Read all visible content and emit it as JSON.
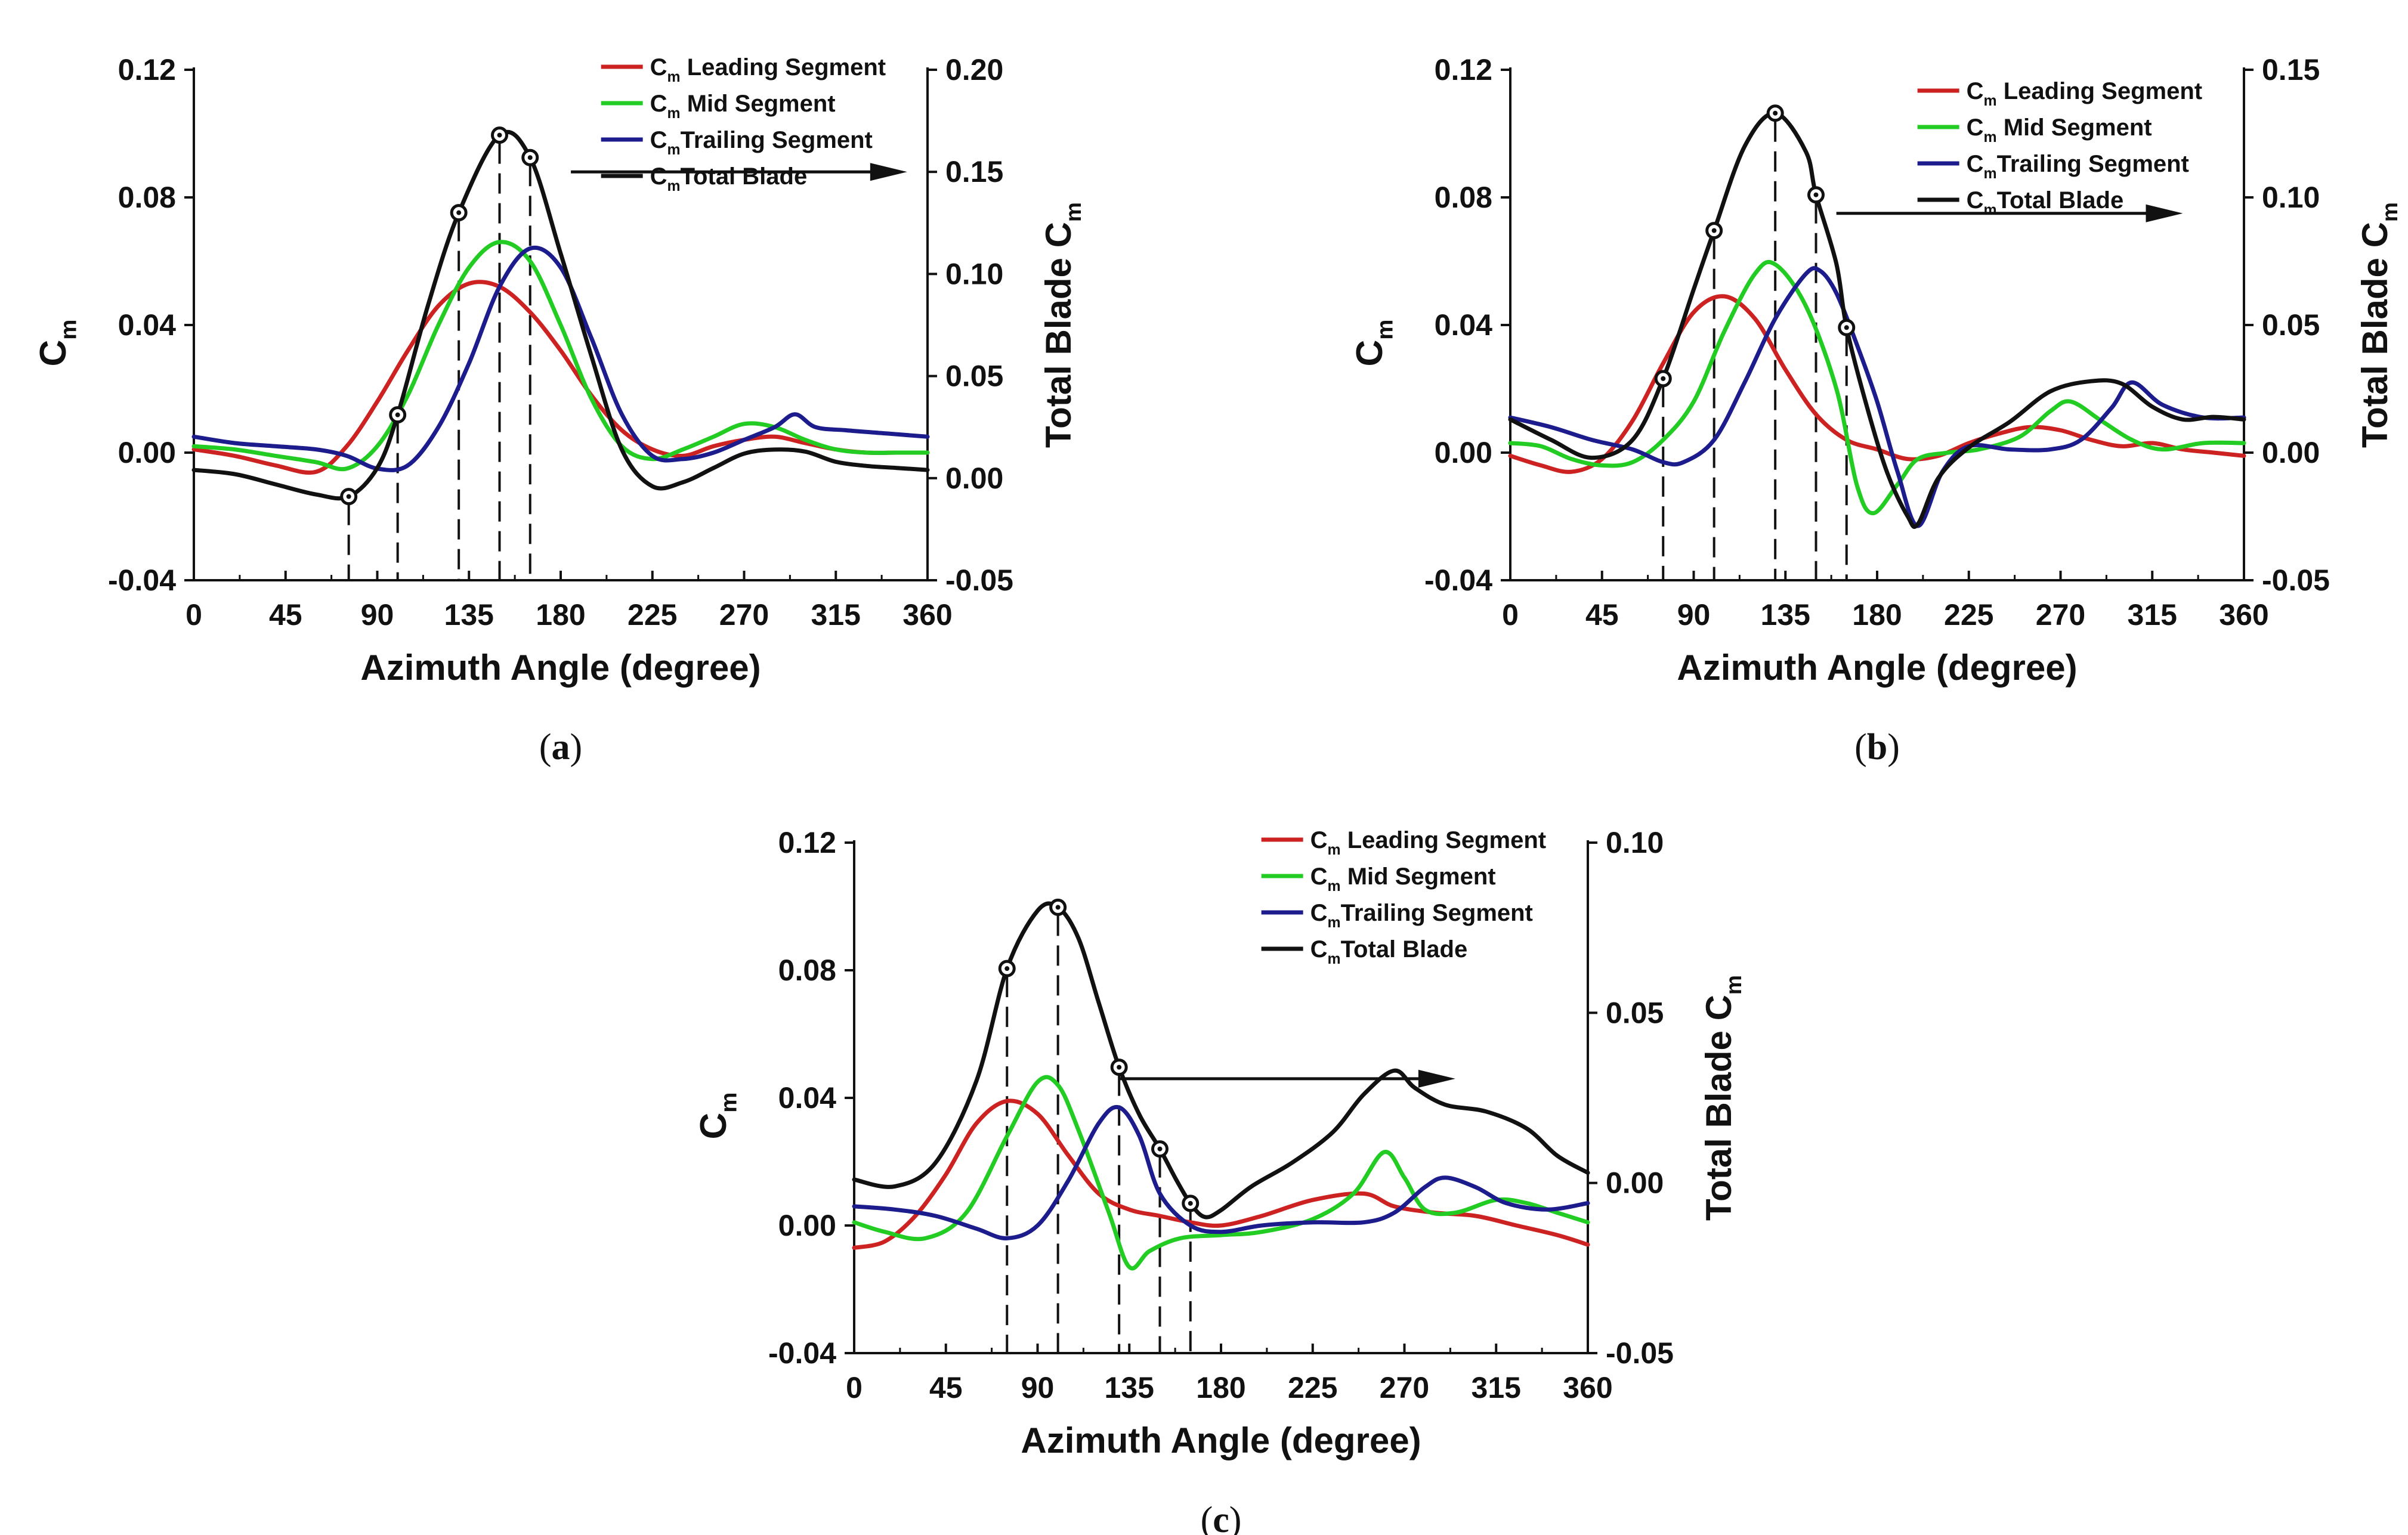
{
  "colors": {
    "leading": "#cc2222",
    "mid": "#22cc22",
    "trailing": "#1c1c8c",
    "total": "#111111",
    "axis": "#111111"
  },
  "chart_data": [
    {
      "id": "a",
      "type": "line",
      "caption": "a",
      "xlabel": "Azimuth Angle (degree)",
      "ylabel": "C",
      "ylabel_sub": "m",
      "y2label": "Total Blade C",
      "y2label_sub": "m",
      "xlim": [
        0,
        360
      ],
      "ylim": [
        -0.04,
        0.12
      ],
      "y2lim": [
        -0.05,
        0.2
      ],
      "xticks": [
        "0",
        "45",
        "90",
        "135",
        "180",
        "225",
        "270",
        "315",
        "360"
      ],
      "yticks": [
        "-0.04",
        "0.00",
        "0.04",
        "0.08",
        "0.12"
      ],
      "y2ticks": [
        "-0.05",
        "0.00",
        "0.05",
        "0.10",
        "0.15",
        "0.20"
      ],
      "legend": [
        {
          "prefix": "C",
          "sub": "m",
          "label": " Leading Segment",
          "series": "leading"
        },
        {
          "prefix": "C",
          "sub": "m",
          "label": " Mid Segment",
          "series": "mid"
        },
        {
          "prefix": "C",
          "sub": "m",
          "label": "Trailing Segment",
          "series": "trailing"
        },
        {
          "prefix": "C",
          "sub": "m",
          "label": "Total Blade",
          "series": "total"
        }
      ],
      "legend_position": "top-right",
      "series": [
        {
          "key": "leading",
          "name": "Cm Leading Segment",
          "axis": "left",
          "x": [
            0,
            20,
            40,
            60,
            75,
            90,
            105,
            120,
            135,
            150,
            165,
            180,
            195,
            210,
            225,
            240,
            255,
            270,
            285,
            300,
            315,
            330,
            345,
            360
          ],
          "y": [
            0.001,
            -0.001,
            -0.004,
            -0.006,
            0.002,
            0.016,
            0.032,
            0.046,
            0.053,
            0.052,
            0.044,
            0.032,
            0.018,
            0.007,
            0.001,
            -0.001,
            0.002,
            0.004,
            0.005,
            0.003,
            0.001,
            0.0,
            0.0,
            0.0
          ]
        },
        {
          "key": "mid",
          "name": "Cm Mid Segment",
          "axis": "left",
          "x": [
            0,
            20,
            40,
            60,
            75,
            90,
            105,
            120,
            135,
            150,
            165,
            180,
            195,
            210,
            225,
            240,
            255,
            270,
            285,
            300,
            315,
            330,
            345,
            360
          ],
          "y": [
            0.002,
            0.001,
            -0.001,
            -0.003,
            -0.005,
            0.002,
            0.018,
            0.04,
            0.058,
            0.066,
            0.06,
            0.04,
            0.017,
            0.002,
            -0.002,
            0.001,
            0.005,
            0.009,
            0.008,
            0.004,
            0.001,
            0.0,
            0.0,
            0.0
          ]
        },
        {
          "key": "trailing",
          "name": "Cm Trailing Segment",
          "axis": "left",
          "x": [
            0,
            20,
            40,
            60,
            75,
            90,
            105,
            120,
            135,
            150,
            165,
            180,
            195,
            210,
            225,
            240,
            255,
            270,
            285,
            295,
            305,
            320,
            340,
            360
          ],
          "y": [
            0.005,
            0.003,
            0.002,
            0.001,
            -0.001,
            -0.005,
            -0.004,
            0.008,
            0.028,
            0.052,
            0.064,
            0.058,
            0.036,
            0.012,
            -0.001,
            -0.002,
            0.0,
            0.004,
            0.008,
            0.012,
            0.008,
            0.007,
            0.006,
            0.005
          ]
        },
        {
          "key": "total",
          "name": "Cm Total Blade",
          "axis": "right",
          "x": [
            0,
            20,
            40,
            60,
            76,
            90,
            100,
            115,
            130,
            150,
            165,
            180,
            195,
            210,
            225,
            240,
            255,
            270,
            285,
            300,
            315,
            330,
            345,
            360
          ],
          "y": [
            0.004,
            0.002,
            -0.003,
            -0.008,
            -0.009,
            0.005,
            0.031,
            0.085,
            0.13,
            0.168,
            0.157,
            0.11,
            0.06,
            0.014,
            -0.004,
            -0.002,
            0.005,
            0.012,
            0.014,
            0.013,
            0.008,
            0.006,
            0.005,
            0.004
          ]
        }
      ],
      "markers": [
        {
          "x": 76,
          "y": -0.009
        },
        {
          "x": 100,
          "y": 0.031
        },
        {
          "x": 130,
          "y": 0.13
        },
        {
          "x": 150,
          "y": 0.168
        },
        {
          "x": 165,
          "y": 0.157
        }
      ],
      "arrow": {
        "from_x": 185,
        "to_x": 350,
        "y": 0.088
      }
    },
    {
      "id": "b",
      "type": "line",
      "caption": "b",
      "xlabel": "Azimuth Angle (degree)",
      "ylabel": "C",
      "ylabel_sub": "m",
      "y2label": "Total Blade C",
      "y2label_sub": "m",
      "xlim": [
        0,
        360
      ],
      "ylim": [
        -0.04,
        0.12
      ],
      "y2lim": [
        -0.05,
        0.15
      ],
      "xticks": [
        "0",
        "45",
        "90",
        "135",
        "180",
        "225",
        "270",
        "315",
        "360"
      ],
      "yticks": [
        "-0.04",
        "0.00",
        "0.04",
        "0.08",
        "0.12"
      ],
      "y2ticks": [
        "-0.05",
        "0.00",
        "0.05",
        "0.10",
        "0.15"
      ],
      "legend": [
        {
          "prefix": "C",
          "sub": "m",
          "label": " Leading Segment",
          "series": "leading"
        },
        {
          "prefix": "C",
          "sub": "m",
          "label": " Mid Segment",
          "series": "mid"
        },
        {
          "prefix": "C",
          "sub": "m",
          "label": "Trailing Segment",
          "series": "trailing"
        },
        {
          "prefix": "C",
          "sub": "m",
          "label": "Total Blade",
          "series": "total"
        }
      ],
      "legend_position": "top-right",
      "series": [
        {
          "key": "leading",
          "name": "Cm Leading Segment",
          "axis": "left",
          "x": [
            0,
            15,
            30,
            45,
            60,
            75,
            90,
            105,
            120,
            135,
            150,
            165,
            180,
            195,
            210,
            225,
            240,
            255,
            270,
            285,
            300,
            315,
            330,
            345,
            360
          ],
          "y": [
            -0.001,
            -0.004,
            -0.006,
            -0.002,
            0.01,
            0.028,
            0.044,
            0.049,
            0.042,
            0.026,
            0.012,
            0.004,
            0.001,
            -0.002,
            -0.001,
            0.003,
            0.006,
            0.008,
            0.007,
            0.004,
            0.002,
            0.003,
            0.001,
            0.0,
            -0.001
          ]
        },
        {
          "key": "mid",
          "name": "Cm Mid Segment",
          "axis": "left",
          "x": [
            0,
            15,
            30,
            45,
            60,
            75,
            90,
            105,
            120,
            130,
            145,
            160,
            170,
            178,
            190,
            200,
            215,
            230,
            250,
            265,
            275,
            290,
            305,
            320,
            340,
            360
          ],
          "y": [
            0.003,
            0.002,
            -0.002,
            -0.004,
            -0.003,
            0.004,
            0.016,
            0.038,
            0.056,
            0.059,
            0.046,
            0.02,
            -0.01,
            -0.019,
            -0.01,
            -0.002,
            0.0,
            0.001,
            0.005,
            0.013,
            0.016,
            0.01,
            0.004,
            0.001,
            0.003,
            0.003
          ]
        },
        {
          "key": "trailing",
          "name": "Cm Trailing Segment",
          "axis": "left",
          "x": [
            0,
            20,
            40,
            60,
            75,
            85,
            100,
            115,
            130,
            145,
            152,
            160,
            170,
            180,
            190,
            200,
            212,
            225,
            245,
            265,
            280,
            295,
            305,
            320,
            340,
            360
          ],
          "y": [
            0.011,
            0.008,
            0.004,
            0.001,
            -0.003,
            -0.003,
            0.004,
            0.022,
            0.042,
            0.056,
            0.057,
            0.05,
            0.034,
            0.016,
            -0.006,
            -0.023,
            -0.006,
            0.002,
            0.001,
            0.001,
            0.004,
            0.014,
            0.022,
            0.015,
            0.011,
            0.011
          ]
        },
        {
          "key": "total",
          "name": "Cm Total Blade",
          "axis": "right",
          "x": [
            0,
            20,
            40,
            60,
            75,
            90,
            100,
            115,
            130,
            145,
            150,
            160,
            165,
            175,
            185,
            195,
            200,
            210,
            225,
            245,
            265,
            285,
            300,
            315,
            330,
            345,
            360
          ],
          "y": [
            0.013,
            0.005,
            -0.002,
            0.005,
            0.029,
            0.064,
            0.087,
            0.12,
            0.133,
            0.118,
            0.101,
            0.074,
            0.049,
            0.018,
            -0.008,
            -0.025,
            -0.028,
            -0.01,
            0.002,
            0.012,
            0.024,
            0.028,
            0.027,
            0.018,
            0.013,
            0.014,
            0.013
          ]
        }
      ],
      "markers": [
        {
          "x": 75,
          "y": 0.029
        },
        {
          "x": 100,
          "y": 0.087
        },
        {
          "x": 130,
          "y": 0.133
        },
        {
          "x": 150,
          "y": 0.101
        },
        {
          "x": 165,
          "y": 0.049
        }
      ],
      "arrow": {
        "from_x": 160,
        "to_x": 330,
        "y": 0.075
      }
    },
    {
      "id": "c",
      "type": "line",
      "caption": "c",
      "xlabel": "Azimuth Angle (degree)",
      "ylabel": "C",
      "ylabel_sub": "m",
      "y2label": "Total Blade C",
      "y2label_sub": "m",
      "xlim": [
        0,
        360
      ],
      "ylim": [
        -0.04,
        0.12
      ],
      "y2lim": [
        -0.05,
        0.1
      ],
      "xticks": [
        "0",
        "45",
        "90",
        "135",
        "180",
        "225",
        "270",
        "315",
        "360"
      ],
      "yticks": [
        "-0.04",
        "0.00",
        "0.04",
        "0.08",
        "0.12"
      ],
      "y2ticks": [
        "-0.05",
        "0.00",
        "0.05",
        "0.10"
      ],
      "legend": [
        {
          "prefix": "C",
          "sub": "m",
          "label": " Leading Segment",
          "series": "leading"
        },
        {
          "prefix": "C",
          "sub": "m",
          "label": " Mid Segment",
          "series": "mid"
        },
        {
          "prefix": "C",
          "sub": "m",
          "label": "Trailing Segment",
          "series": "trailing"
        },
        {
          "prefix": "C",
          "sub": "m",
          "label": "Total Blade",
          "series": "total"
        }
      ],
      "legend_position": "top-right",
      "series": [
        {
          "key": "leading",
          "name": "Cm Leading Segment",
          "axis": "left",
          "x": [
            0,
            15,
            30,
            45,
            60,
            75,
            90,
            105,
            120,
            135,
            150,
            165,
            180,
            200,
            225,
            250,
            265,
            285,
            305,
            325,
            345,
            360
          ],
          "y": [
            -0.007,
            -0.005,
            0.003,
            0.016,
            0.032,
            0.039,
            0.035,
            0.022,
            0.01,
            0.005,
            0.003,
            0.001,
            0.0,
            0.003,
            0.008,
            0.01,
            0.006,
            0.004,
            0.003,
            0.0,
            -0.003,
            -0.006
          ]
        },
        {
          "key": "mid",
          "name": "Cm Mid Segment",
          "axis": "left",
          "x": [
            0,
            15,
            35,
            55,
            75,
            90,
            100,
            110,
            125,
            135,
            145,
            160,
            180,
            200,
            225,
            245,
            260,
            270,
            280,
            295,
            315,
            330,
            345,
            360
          ],
          "y": [
            0.001,
            -0.002,
            -0.004,
            0.004,
            0.028,
            0.045,
            0.044,
            0.03,
            0.004,
            -0.013,
            -0.008,
            -0.004,
            -0.003,
            -0.002,
            0.002,
            0.01,
            0.023,
            0.015,
            0.005,
            0.004,
            0.008,
            0.007,
            0.004,
            0.001
          ]
        },
        {
          "key": "trailing",
          "name": "Cm Trailing Segment",
          "axis": "left",
          "x": [
            0,
            20,
            40,
            60,
            75,
            90,
            105,
            120,
            130,
            140,
            150,
            165,
            180,
            200,
            225,
            250,
            265,
            280,
            290,
            305,
            320,
            340,
            360
          ],
          "y": [
            0.006,
            0.005,
            0.003,
            -0.001,
            -0.004,
            0.0,
            0.014,
            0.032,
            0.037,
            0.028,
            0.01,
            0.0,
            -0.002,
            0.0,
            0.001,
            0.001,
            0.004,
            0.012,
            0.015,
            0.012,
            0.007,
            0.005,
            0.007
          ]
        },
        {
          "key": "total",
          "name": "Cm Total Blade",
          "axis": "right",
          "x": [
            0,
            20,
            40,
            60,
            75,
            90,
            100,
            110,
            120,
            130,
            140,
            150,
            158,
            165,
            172,
            180,
            195,
            215,
            235,
            250,
            265,
            275,
            290,
            310,
            330,
            345,
            360
          ],
          "y": [
            0.001,
            -0.001,
            0.006,
            0.03,
            0.063,
            0.08,
            0.081,
            0.072,
            0.053,
            0.034,
            0.02,
            0.01,
            0.001,
            -0.006,
            -0.01,
            -0.008,
            -0.001,
            0.006,
            0.015,
            0.026,
            0.033,
            0.028,
            0.023,
            0.021,
            0.016,
            0.008,
            0.003
          ]
        }
      ],
      "markers": [
        {
          "x": 75,
          "y": 0.063
        },
        {
          "x": 100,
          "y": 0.081
        },
        {
          "x": 130,
          "y": 0.034
        },
        {
          "x": 150,
          "y": 0.01
        },
        {
          "x": 165,
          "y": -0.006
        }
      ],
      "arrow": {
        "from_x": 130,
        "to_x": 295,
        "y": 0.046
      }
    }
  ]
}
